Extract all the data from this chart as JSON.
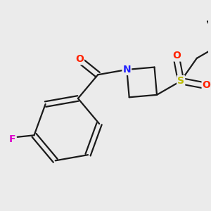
{
  "background_color": "#ebebeb",
  "bond_color": "#1a1a1a",
  "atom_colors": {
    "O": "#ff2200",
    "N": "#2020ff",
    "F": "#dd00cc",
    "S": "#bbbb00",
    "C": "#1a1a1a"
  },
  "figsize": [
    3.0,
    3.0
  ],
  "dpi": 100
}
